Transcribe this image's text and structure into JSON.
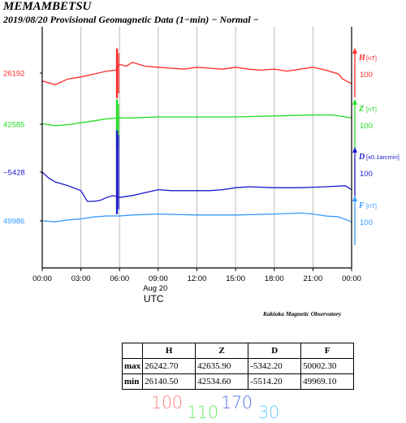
{
  "header": {
    "station": "MEMAMBETSU",
    "subtitle": "2019/08/20  Provisional Geomagnetic Data (1−min)  − Normal −"
  },
  "observatory": "Kakioka Magnetic Observatory",
  "colors": {
    "H": "#ff2a2a",
    "Z": "#22dd22",
    "D": "#1a1acc",
    "F": "#3399ff",
    "grid": "#bbbbbb"
  },
  "chart_data": {
    "type": "line",
    "x": [
      "00:00",
      "03:00",
      "06:00",
      "09:00",
      "12:00",
      "15:00",
      "18:00",
      "21:00",
      "00:00"
    ],
    "x_date_label": "Aug 20",
    "xlabel": "UTC",
    "series": [
      {
        "key": "H",
        "name": "H",
        "unit": "[nT]",
        "scale": "100",
        "baseline_label": "26192",
        "color": "#ff2a2a",
        "points": [
          [
            0,
            26176
          ],
          [
            1,
            26168
          ],
          [
            2,
            26180
          ],
          [
            3,
            26184
          ],
          [
            4,
            26190
          ],
          [
            5,
            26196
          ],
          [
            5.7,
            26198
          ],
          [
            6,
            26210
          ],
          [
            6.5,
            26206
          ],
          [
            7,
            26214
          ],
          [
            7.5,
            26210
          ],
          [
            8,
            26206
          ],
          [
            9,
            26204
          ],
          [
            10,
            26202
          ],
          [
            11,
            26200
          ],
          [
            12,
            26204
          ],
          [
            13,
            26202
          ],
          [
            14,
            26200
          ],
          [
            15,
            26204
          ],
          [
            16,
            26200
          ],
          [
            17,
            26198
          ],
          [
            18,
            26200
          ],
          [
            19,
            26196
          ],
          [
            20,
            26200
          ],
          [
            21,
            26204
          ],
          [
            22,
            26198
          ],
          [
            23,
            26190
          ],
          [
            23.3,
            26180
          ],
          [
            24,
            26170
          ]
        ],
        "spike": {
          "t": 5.8,
          "min": 26140.5,
          "max": 26242.7
        }
      },
      {
        "key": "Z",
        "name": "Z",
        "unit": "[nT]",
        "scale": "100",
        "baseline_label": "42585",
        "color": "#22dd22",
        "points": [
          [
            0,
            42586
          ],
          [
            1,
            42582
          ],
          [
            2,
            42584
          ],
          [
            3,
            42588
          ],
          [
            4,
            42592
          ],
          [
            5,
            42596
          ],
          [
            6,
            42598
          ],
          [
            7,
            42598
          ],
          [
            9,
            42600
          ],
          [
            12,
            42600
          ],
          [
            15,
            42600
          ],
          [
            18,
            42602
          ],
          [
            21,
            42604
          ],
          [
            22.5,
            42604
          ],
          [
            23.5,
            42600
          ],
          [
            24,
            42598
          ]
        ],
        "spike": {
          "t": 5.8,
          "min": 42534.6,
          "max": 42635.9
        }
      },
      {
        "key": "D",
        "name": "D",
        "unit": "[x0.1arcmin]",
        "scale": "100",
        "baseline_label": "−5428",
        "color": "#1a1acc",
        "points": [
          [
            0,
            -5428
          ],
          [
            0.5,
            -5440
          ],
          [
            1,
            -5448
          ],
          [
            2,
            -5456
          ],
          [
            3,
            -5466
          ],
          [
            3.5,
            -5488
          ],
          [
            4,
            -5488
          ],
          [
            4.5,
            -5486
          ],
          [
            5,
            -5480
          ],
          [
            5.5,
            -5476
          ],
          [
            6,
            -5480
          ],
          [
            7,
            -5476
          ],
          [
            8,
            -5470
          ],
          [
            9,
            -5464
          ],
          [
            10,
            -5466
          ],
          [
            12,
            -5466
          ],
          [
            13,
            -5466
          ],
          [
            14,
            -5464
          ],
          [
            15,
            -5460
          ],
          [
            16,
            -5458
          ],
          [
            18,
            -5460
          ],
          [
            20,
            -5460
          ],
          [
            22,
            -5458
          ],
          [
            23.5,
            -5456
          ],
          [
            24,
            -5464
          ]
        ],
        "spike": {
          "t": 5.8,
          "min": -5514.2,
          "max": -5342.2
        }
      },
      {
        "key": "F",
        "name": "F",
        "unit": "[nT]",
        "scale": "100",
        "baseline_label": "49986",
        "color": "#3399ff",
        "points": [
          [
            0,
            49986
          ],
          [
            1,
            49984
          ],
          [
            2,
            49988
          ],
          [
            3,
            49990
          ],
          [
            4,
            49994
          ],
          [
            5,
            49996
          ],
          [
            6,
            49996
          ],
          [
            7,
            49998
          ],
          [
            9,
            50000
          ],
          [
            12,
            49998
          ],
          [
            15,
            49998
          ],
          [
            18,
            50000
          ],
          [
            20,
            50002
          ],
          [
            21,
            50000
          ],
          [
            22,
            49996
          ],
          [
            23,
            49994
          ],
          [
            24,
            49984
          ]
        ],
        "spike": null
      }
    ],
    "grid": true,
    "legend_position": "right"
  },
  "table": {
    "columns": [
      "",
      "H",
      "Z",
      "D",
      "F"
    ],
    "rows": [
      [
        "max",
        "26242.70",
        "42635.90",
        "-5342.20",
        "50002.30"
      ],
      [
        "min",
        "26140.50",
        "42534.60",
        "-5514.20",
        "49969.10"
      ]
    ]
  },
  "scales_legend": [
    "100",
    "110",
    "170",
    "30"
  ]
}
